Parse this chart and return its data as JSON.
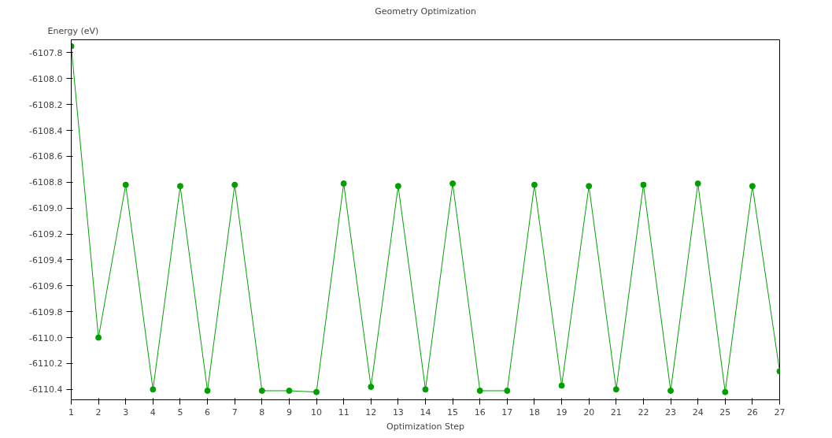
{
  "chart_data": {
    "type": "line",
    "title": "Geometry Optimization",
    "xlabel": "Optimization Step",
    "ylabel": "Energy (eV)",
    "x": [
      1,
      2,
      3,
      4,
      5,
      6,
      7,
      8,
      9,
      10,
      11,
      12,
      13,
      14,
      15,
      16,
      17,
      18,
      19,
      20,
      21,
      22,
      23,
      24,
      25,
      26,
      27
    ],
    "series": [
      {
        "color": "#00a000",
        "values": [
          -6107.75,
          -6110.0,
          -6108.82,
          -6110.4,
          -6108.83,
          -6110.41,
          -6108.82,
          -6110.41,
          -6110.41,
          -6110.42,
          -6108.81,
          -6110.38,
          -6108.83,
          -6110.4,
          -6108.81,
          -6110.41,
          -6110.41,
          -6108.82,
          -6110.37,
          -6108.83,
          -6110.4,
          -6108.82,
          -6110.41,
          -6108.81,
          -6110.42,
          -6108.83,
          -6110.26
        ]
      }
    ],
    "xlim": [
      1,
      27
    ],
    "ylim": [
      -6110.48,
      -6107.7
    ],
    "xticks": [
      1,
      2,
      3,
      4,
      5,
      6,
      7,
      8,
      9,
      10,
      11,
      12,
      13,
      14,
      15,
      16,
      17,
      18,
      19,
      20,
      21,
      22,
      23,
      24,
      25,
      26,
      27
    ],
    "yticks": [
      {
        "value": -6107.8,
        "label": "-6107.8"
      },
      {
        "value": -6108.0,
        "label": "-6108.0"
      },
      {
        "value": -6108.2,
        "label": "-6108.2"
      },
      {
        "value": -6108.4,
        "label": "-6108.4"
      },
      {
        "value": -6108.6,
        "label": "-6108.6"
      },
      {
        "value": -6108.8,
        "label": "-6108.8"
      },
      {
        "value": -6109.0,
        "label": "-6109.0"
      },
      {
        "value": -6109.2,
        "label": "-6109.2"
      },
      {
        "value": -6109.4,
        "label": "-6109.4"
      },
      {
        "value": -6109.6,
        "label": "-6109.6"
      },
      {
        "value": -6109.8,
        "label": "-6109.8"
      },
      {
        "value": -6110.0,
        "label": "-6110.0"
      },
      {
        "value": -6110.2,
        "label": "-6110.2"
      },
      {
        "value": -6110.4,
        "label": "-6110.4"
      }
    ],
    "grid": false,
    "marker": "circle",
    "line_style": "solid"
  }
}
